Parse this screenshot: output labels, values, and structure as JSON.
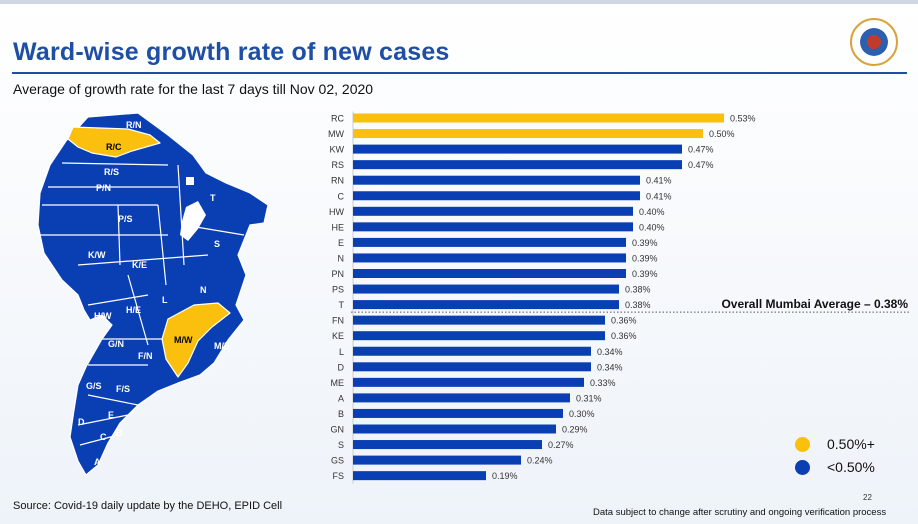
{
  "page": {
    "title": "Ward-wise growth rate of new cases",
    "subtitle": "Average of growth rate for the last 7 days till Nov 02, 2020",
    "source": "Source: Covid-19 daily update by the DEHO, EPID Cell",
    "disclaimer": "Data subject to change after scrutiny and ongoing verification process",
    "page_number": "22"
  },
  "colors": {
    "high": "#fbbf0e",
    "low": "#0a3eb3",
    "title": "#1f4fa5",
    "map_border": "#ffffff"
  },
  "map": {
    "labels": [
      "R/N",
      "R/C",
      "R/S",
      "P/N",
      "T",
      "P/S",
      "S",
      "K/W",
      "K/E",
      "N",
      "L",
      "H/W",
      "H/E",
      "M/W",
      "M/E",
      "G/N",
      "F/N",
      "G/S",
      "F/S",
      "E",
      "D",
      "C",
      "B",
      "A"
    ],
    "highlighted": [
      "R/C",
      "M/W"
    ]
  },
  "chart_data": {
    "type": "bar",
    "orientation": "horizontal",
    "title": "Ward-wise growth rate of new cases",
    "categories": [
      "RC",
      "MW",
      "KW",
      "RS",
      "RN",
      "C",
      "HW",
      "HE",
      "E",
      "N",
      "PN",
      "PS",
      "T",
      "FN",
      "KE",
      "L",
      "D",
      "ME",
      "A",
      "B",
      "GN",
      "S",
      "GS",
      "FS"
    ],
    "values": [
      0.53,
      0.5,
      0.47,
      0.47,
      0.41,
      0.41,
      0.4,
      0.4,
      0.39,
      0.39,
      0.39,
      0.38,
      0.38,
      0.36,
      0.36,
      0.34,
      0.34,
      0.33,
      0.31,
      0.3,
      0.29,
      0.27,
      0.24,
      0.19
    ],
    "value_labels": [
      "0.53%",
      "0.50%",
      "0.47%",
      "0.47%",
      "0.41%",
      "0.41%",
      "0.40%",
      "0.40%",
      "0.39%",
      "0.39%",
      "0.39%",
      "0.38%",
      "0.38%",
      "0.36%",
      "0.36%",
      "0.34%",
      "0.34%",
      "0.33%",
      "0.31%",
      "0.30%",
      "0.29%",
      "0.27%",
      "0.24%",
      "0.19%"
    ],
    "xlim": [
      0,
      0.53
    ],
    "threshold": 0.5,
    "reference_line": {
      "value": 0.38,
      "label": "Overall Mumbai Average – 0.38%"
    },
    "legend": [
      {
        "label": "0.50%+",
        "color": "#fbbf0e"
      },
      {
        "label": "<0.50%",
        "color": "#0a3eb3"
      }
    ],
    "legend_position": "bottom-right"
  }
}
